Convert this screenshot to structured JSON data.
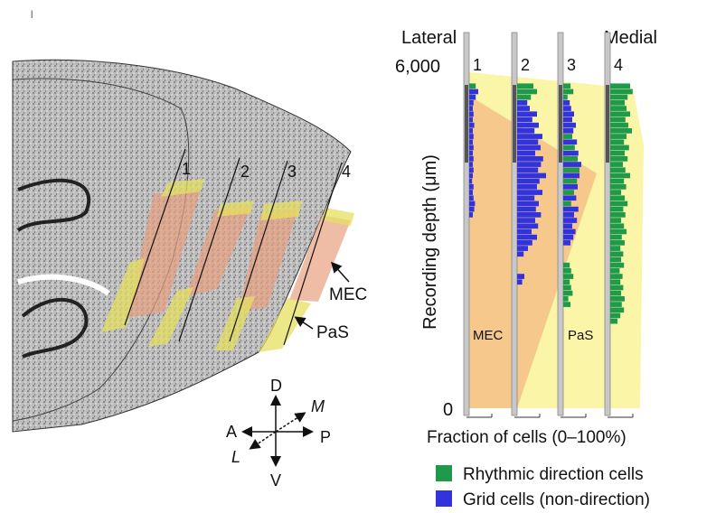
{
  "histology": {
    "probe_labels": [
      "1",
      "2",
      "3",
      "4"
    ],
    "region_labels": {
      "mec": "MEC",
      "pas": "PaS"
    },
    "compass": {
      "d": "D",
      "v": "V",
      "a": "A",
      "p": "P",
      "m": "M",
      "l": "L"
    }
  },
  "chart_data": {
    "type": "bar",
    "orientation": "horizontal-histograms",
    "xlabel": "Fraction of cells (0–100%)",
    "ylabel": "Recording depth (μm)",
    "ylim": [
      0,
      6000
    ],
    "y_tick_labels": [
      "6,000",
      "0"
    ],
    "axis_ends": {
      "left": "Lateral",
      "right": "Medial"
    },
    "probes": [
      "1",
      "2",
      "3",
      "4"
    ],
    "region_labels": {
      "mec": "MEC",
      "pas": "PaS"
    },
    "legend": [
      {
        "name": "Rhythmic direction cells",
        "color": "#1f9a4b"
      },
      {
        "name": "Grid cells (non-direction)",
        "color": "#3333dd"
      }
    ],
    "bin_depth_um": 100,
    "series": [
      {
        "probe": "1",
        "rhythmic": [
          [
            5700,
            0.18
          ],
          [
            5600,
            0.1
          ],
          [
            5500,
            0.06
          ]
        ],
        "grid": [
          [
            5600,
            0.25
          ],
          [
            5500,
            0.18
          ],
          [
            5400,
            0.12
          ],
          [
            5300,
            0.1
          ],
          [
            5200,
            0.12
          ],
          [
            5100,
            0.1
          ],
          [
            5000,
            0.14
          ],
          [
            4900,
            0.1
          ],
          [
            4800,
            0.12
          ],
          [
            4700,
            0.1
          ],
          [
            4600,
            0.12
          ],
          [
            4500,
            0.1
          ],
          [
            4400,
            0.12
          ],
          [
            4300,
            0.1
          ],
          [
            4200,
            0.12
          ],
          [
            4100,
            0.1
          ],
          [
            4000,
            0.08
          ],
          [
            3900,
            0.12
          ],
          [
            3800,
            0.1
          ],
          [
            3700,
            0.12
          ],
          [
            3600,
            0.16
          ],
          [
            3500,
            0.14
          ],
          [
            3400,
            0.1
          ]
        ]
      },
      {
        "probe": "2",
        "rhythmic": [
          [
            5700,
            0.45
          ],
          [
            5600,
            0.55
          ],
          [
            5500,
            0.38
          ]
        ],
        "grid": [
          [
            5400,
            0.28
          ],
          [
            5300,
            0.35
          ],
          [
            5200,
            0.55
          ],
          [
            5100,
            0.42
          ],
          [
            5000,
            0.6
          ],
          [
            4900,
            0.48
          ],
          [
            4800,
            0.7
          ],
          [
            4700,
            0.58
          ],
          [
            4600,
            0.65
          ],
          [
            4500,
            0.5
          ],
          [
            4400,
            0.72
          ],
          [
            4300,
            0.66
          ],
          [
            4200,
            0.58
          ],
          [
            4100,
            0.8
          ],
          [
            4000,
            0.62
          ],
          [
            3900,
            0.55
          ],
          [
            3800,
            0.7
          ],
          [
            3700,
            0.48
          ],
          [
            3600,
            0.6
          ],
          [
            3500,
            0.52
          ],
          [
            3400,
            0.66
          ],
          [
            3300,
            0.5
          ],
          [
            3200,
            0.58
          ],
          [
            3100,
            0.4
          ],
          [
            3000,
            0.55
          ],
          [
            2900,
            0.42
          ],
          [
            2800,
            0.3
          ],
          [
            2700,
            0.18
          ],
          [
            2300,
            0.2
          ],
          [
            2200,
            0.14
          ]
        ]
      },
      {
        "probe": "3",
        "rhythmic": [
          [
            5700,
            0.2
          ],
          [
            5600,
            0.28
          ],
          [
            5500,
            0.12
          ],
          [
            4800,
            0.25
          ],
          [
            4600,
            0.32
          ],
          [
            4400,
            0.4
          ],
          [
            4200,
            0.45
          ],
          [
            4000,
            0.38
          ],
          [
            3800,
            0.3
          ],
          [
            3600,
            0.22
          ],
          [
            2500,
            0.18
          ],
          [
            2400,
            0.22
          ],
          [
            2300,
            0.28
          ],
          [
            2200,
            0.18
          ],
          [
            2100,
            0.22
          ],
          [
            2000,
            0.26
          ],
          [
            1900,
            0.14
          ],
          [
            1800,
            0.2
          ]
        ],
        "grid": [
          [
            5400,
            0.18
          ],
          [
            5300,
            0.22
          ],
          [
            5200,
            0.3
          ],
          [
            5100,
            0.25
          ],
          [
            5000,
            0.35
          ],
          [
            4900,
            0.28
          ],
          [
            4700,
            0.38
          ],
          [
            4500,
            0.42
          ],
          [
            4300,
            0.5
          ],
          [
            4100,
            0.45
          ],
          [
            3900,
            0.4
          ],
          [
            3700,
            0.36
          ],
          [
            3500,
            0.42
          ],
          [
            3400,
            0.3
          ],
          [
            3300,
            0.38
          ],
          [
            3200,
            0.25
          ],
          [
            3100,
            0.34
          ],
          [
            3000,
            0.28
          ],
          [
            2900,
            0.2
          ]
        ]
      },
      {
        "probe": "4",
        "rhythmic": [
          [
            5700,
            0.55
          ],
          [
            5600,
            0.62
          ],
          [
            5500,
            0.48
          ],
          [
            5400,
            0.4
          ],
          [
            5300,
            0.45
          ],
          [
            5200,
            0.55
          ],
          [
            5100,
            0.42
          ],
          [
            5000,
            0.5
          ],
          [
            4900,
            0.6
          ],
          [
            4800,
            0.45
          ],
          [
            4700,
            0.38
          ],
          [
            4600,
            0.52
          ],
          [
            4500,
            0.4
          ],
          [
            4400,
            0.48
          ],
          [
            4300,
            0.35
          ],
          [
            4200,
            0.42
          ],
          [
            4100,
            0.55
          ],
          [
            4000,
            0.38
          ],
          [
            3900,
            0.44
          ],
          [
            3800,
            0.3
          ],
          [
            3700,
            0.4
          ],
          [
            3600,
            0.48
          ],
          [
            3500,
            0.36
          ],
          [
            3400,
            0.42
          ],
          [
            3300,
            0.3
          ],
          [
            3200,
            0.38
          ],
          [
            3100,
            0.45
          ],
          [
            3000,
            0.32
          ],
          [
            2900,
            0.4
          ],
          [
            2800,
            0.28
          ],
          [
            2700,
            0.36
          ],
          [
            2600,
            0.3
          ],
          [
            2500,
            0.38
          ],
          [
            2400,
            0.26
          ],
          [
            2300,
            0.34
          ],
          [
            2200,
            0.28
          ],
          [
            2100,
            0.36
          ],
          [
            2000,
            0.3
          ],
          [
            1900,
            0.4
          ],
          [
            1800,
            0.32
          ],
          [
            1700,
            0.38
          ],
          [
            1600,
            0.28
          ],
          [
            1500,
            0.2
          ]
        ],
        "grid": []
      }
    ]
  }
}
